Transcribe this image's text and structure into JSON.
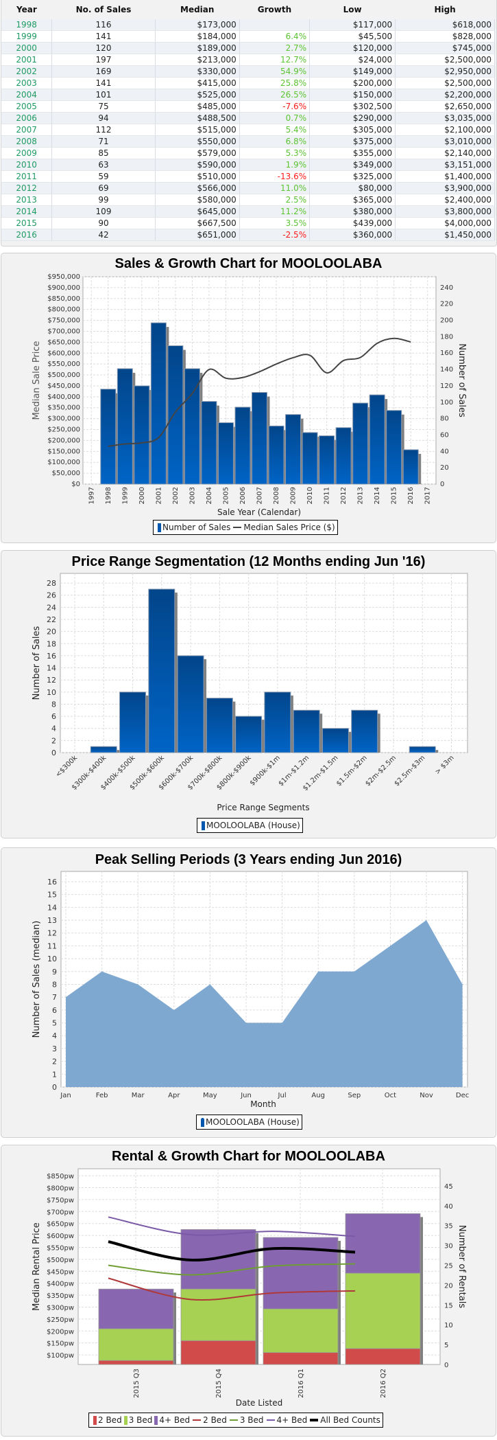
{
  "table": {
    "headers": [
      "Year",
      "No. of Sales",
      "Median",
      "Growth",
      "Low",
      "High"
    ],
    "rows": [
      [
        "1998",
        "116",
        "$173,000",
        "",
        "$117,000",
        "$618,000"
      ],
      [
        "1999",
        "141",
        "$184,000",
        "6.4%",
        "$45,500",
        "$828,000"
      ],
      [
        "2000",
        "120",
        "$189,000",
        "2.7%",
        "$120,000",
        "$745,000"
      ],
      [
        "2001",
        "197",
        "$213,000",
        "12.7%",
        "$24,000",
        "$2,500,000"
      ],
      [
        "2002",
        "169",
        "$330,000",
        "54.9%",
        "$149,000",
        "$2,950,000"
      ],
      [
        "2003",
        "141",
        "$415,000",
        "25.8%",
        "$200,000",
        "$2,500,000"
      ],
      [
        "2004",
        "101",
        "$525,000",
        "26.5%",
        "$150,000",
        "$2,200,000"
      ],
      [
        "2005",
        "75",
        "$485,000",
        "-7.6%",
        "$302,500",
        "$2,650,000"
      ],
      [
        "2006",
        "94",
        "$488,500",
        "0.7%",
        "$290,000",
        "$3,035,000"
      ],
      [
        "2007",
        "112",
        "$515,000",
        "5.4%",
        "$305,000",
        "$2,100,000"
      ],
      [
        "2008",
        "71",
        "$550,000",
        "6.8%",
        "$375,000",
        "$3,010,000"
      ],
      [
        "2009",
        "85",
        "$579,000",
        "5.3%",
        "$355,000",
        "$2,140,000"
      ],
      [
        "2010",
        "63",
        "$590,000",
        "1.9%",
        "$349,000",
        "$3,151,000"
      ],
      [
        "2011",
        "59",
        "$510,000",
        "-13.6%",
        "$325,000",
        "$1,400,000"
      ],
      [
        "2012",
        "69",
        "$566,000",
        "11.0%",
        "$80,000",
        "$3,900,000"
      ],
      [
        "2013",
        "99",
        "$580,000",
        "2.5%",
        "$365,000",
        "$2,400,000"
      ],
      [
        "2014",
        "109",
        "$645,000",
        "11.2%",
        "$380,000",
        "$3,800,000"
      ],
      [
        "2015",
        "90",
        "$667,500",
        "3.5%",
        "$439,000",
        "$4,000,000"
      ],
      [
        "2016",
        "42",
        "$651,000",
        "-2.5%",
        "$360,000",
        "$1,450,000"
      ]
    ],
    "colors": {
      "year": "#1f9a63",
      "positive": "#5cc433",
      "negative": "#ff1a1a"
    }
  },
  "chart_data": [
    {
      "type": "bar+line",
      "title": "Sales & Growth Chart for MOOLOOLABA",
      "xlabel": "Sale Year (Calendar)",
      "ylabel": "Median Sale Price",
      "ylabel_right": "Number of Sales",
      "categories": [
        "1997",
        "1998",
        "1999",
        "2000",
        "2001",
        "2002",
        "2003",
        "2004",
        "2005",
        "2006",
        "2007",
        "2008",
        "2009",
        "2010",
        "2011",
        "2012",
        "2013",
        "2014",
        "2015",
        "2016",
        "2017"
      ],
      "ylim": [
        0,
        950000
      ],
      "ylim_right": [
        0,
        253.3
      ],
      "yticks": [
        "$0",
        "$50,000",
        "$100,000",
        "$150,000",
        "$200,000",
        "$250,000",
        "$300,000",
        "$350,000",
        "$400,000",
        "$450,000",
        "$500,000",
        "$550,000",
        "$600,000",
        "$650,000",
        "$700,000",
        "$750,000",
        "$800,000",
        "$850,000",
        "$900,000",
        "$950,000"
      ],
      "yticks_right": [
        "0",
        "20",
        "40",
        "60",
        "80",
        "100",
        "120",
        "140",
        "160",
        "180",
        "200",
        "220",
        "240"
      ],
      "series": [
        {
          "name": "Number of Sales",
          "axis": "right",
          "kind": "bar",
          "x": [
            "1998",
            "1999",
            "2000",
            "2001",
            "2002",
            "2003",
            "2004",
            "2005",
            "2006",
            "2007",
            "2008",
            "2009",
            "2010",
            "2011",
            "2012",
            "2013",
            "2014",
            "2015",
            "2016"
          ],
          "values": [
            116,
            141,
            120,
            197,
            169,
            141,
            101,
            75,
            94,
            112,
            71,
            85,
            63,
            59,
            69,
            99,
            109,
            90,
            42
          ],
          "color": "#0057b0"
        },
        {
          "name": "Median Sales Price ($)",
          "axis": "left",
          "kind": "line",
          "x": [
            "1998",
            "1999",
            "2000",
            "2001",
            "2002",
            "2003",
            "2004",
            "2005",
            "2006",
            "2007",
            "2008",
            "2009",
            "2010",
            "2011",
            "2012",
            "2013",
            "2014",
            "2015",
            "2016"
          ],
          "values": [
            173000,
            184000,
            189000,
            213000,
            330000,
            415000,
            525000,
            485000,
            488500,
            515000,
            550000,
            579000,
            590000,
            510000,
            566000,
            580000,
            645000,
            667500,
            651000
          ],
          "color": "#444444"
        }
      ],
      "legend": [
        "Number of Sales",
        "Median Sales Price ($)"
      ],
      "grid": true
    },
    {
      "type": "bar",
      "title": "Price Range Segmentation (12 Months ending Jun '16)",
      "xlabel": "Price Range Segments",
      "ylabel": "Number of Sales",
      "categories": [
        "<$300k",
        "$300k-$400k",
        "$400k-$500k",
        "$500k-$600k",
        "$600k-$700k",
        "$700k-$800k",
        "$800k-$900k",
        "$900k-$1m",
        "$1m-$1.2m",
        "$1.2m-$1.5m",
        "$1.5m-$2m",
        "$2m-$2.5m",
        "$2.5m-$3m",
        "> $3m"
      ],
      "values": [
        0,
        1,
        10,
        27,
        16,
        9,
        6,
        10,
        7,
        4,
        7,
        0,
        1,
        0
      ],
      "ylim": [
        0,
        29.6
      ],
      "yticks": [
        "0",
        "2",
        "4",
        "6",
        "8",
        "10",
        "12",
        "14",
        "16",
        "18",
        "20",
        "22",
        "24",
        "26",
        "28"
      ],
      "legend": [
        "MOOLOOLABA (House)"
      ],
      "grid": true
    },
    {
      "type": "area",
      "title": "Peak Selling Periods (3 Years ending Jun 2016)",
      "xlabel": "Month",
      "ylabel": "Number of Sales (median)",
      "categories": [
        "Jan",
        "Feb",
        "Mar",
        "Apr",
        "May",
        "Jun",
        "Jul",
        "Aug",
        "Sep",
        "Oct",
        "Nov",
        "Dec"
      ],
      "values": [
        7,
        9,
        8,
        6,
        8,
        5,
        5,
        9,
        9,
        11,
        13,
        8
      ],
      "ylim": [
        0,
        16.8
      ],
      "yticks": [
        "0",
        "1",
        "2",
        "3",
        "4",
        "5",
        "6",
        "7",
        "8",
        "9",
        "10",
        "11",
        "12",
        "13",
        "14",
        "15",
        "16"
      ],
      "legend": [
        "MOOLOOLABA (House)"
      ],
      "color": "#7fa8d0",
      "grid": true
    },
    {
      "type": "stacked-bar+line",
      "title": "Rental & Growth Chart for MOOLOOLABA",
      "xlabel": "Date Listed",
      "ylabel": "Median Rental Price",
      "ylabel_right": "Number of Rentals",
      "categories": [
        "2015 Q3",
        "2015 Q4",
        "2016 Q1",
        "2016 Q2"
      ],
      "ylim": [
        60,
        879
      ],
      "ylim_right": [
        0,
        49.3
      ],
      "yticks": [
        "$100pw",
        "$150pw",
        "$200pw",
        "$250pw",
        "$300pw",
        "$350pw",
        "$400pw",
        "$450pw",
        "$500pw",
        "$550pw",
        "$600pw",
        "$650pw",
        "$700pw",
        "$750pw",
        "$800pw",
        "$850pw"
      ],
      "yticks_right": [
        "0",
        "5",
        "10",
        "15",
        "20",
        "25",
        "30",
        "35",
        "40",
        "45"
      ],
      "bars": [
        {
          "name": "2 Bed",
          "values": [
            1,
            6,
            3,
            4
          ],
          "color": "#d24b4b"
        },
        {
          "name": "3 Bed",
          "values": [
            8,
            13,
            11,
            19
          ],
          "color": "#a6d152"
        },
        {
          "name": "4+ Bed",
          "values": [
            10,
            15,
            18,
            15
          ],
          "color": "#8866b0"
        }
      ],
      "lines": [
        {
          "name": "2 Bed",
          "values": [
            421,
            332,
            359,
            368
          ],
          "color": "#b03838",
          "width": 2
        },
        {
          "name": "3 Bed",
          "values": [
            475,
            435,
            472,
            481
          ],
          "color": "#6e9e34",
          "width": 2
        },
        {
          "name": "4+ Bed",
          "values": [
            677,
            603,
            617,
            596
          ],
          "color": "#7a5aa6",
          "width": 2
        },
        {
          "name": "All Bed Counts",
          "values": [
            574,
            497,
            545,
            530
          ],
          "color": "#000000",
          "width": 4
        }
      ],
      "grid": true
    }
  ]
}
